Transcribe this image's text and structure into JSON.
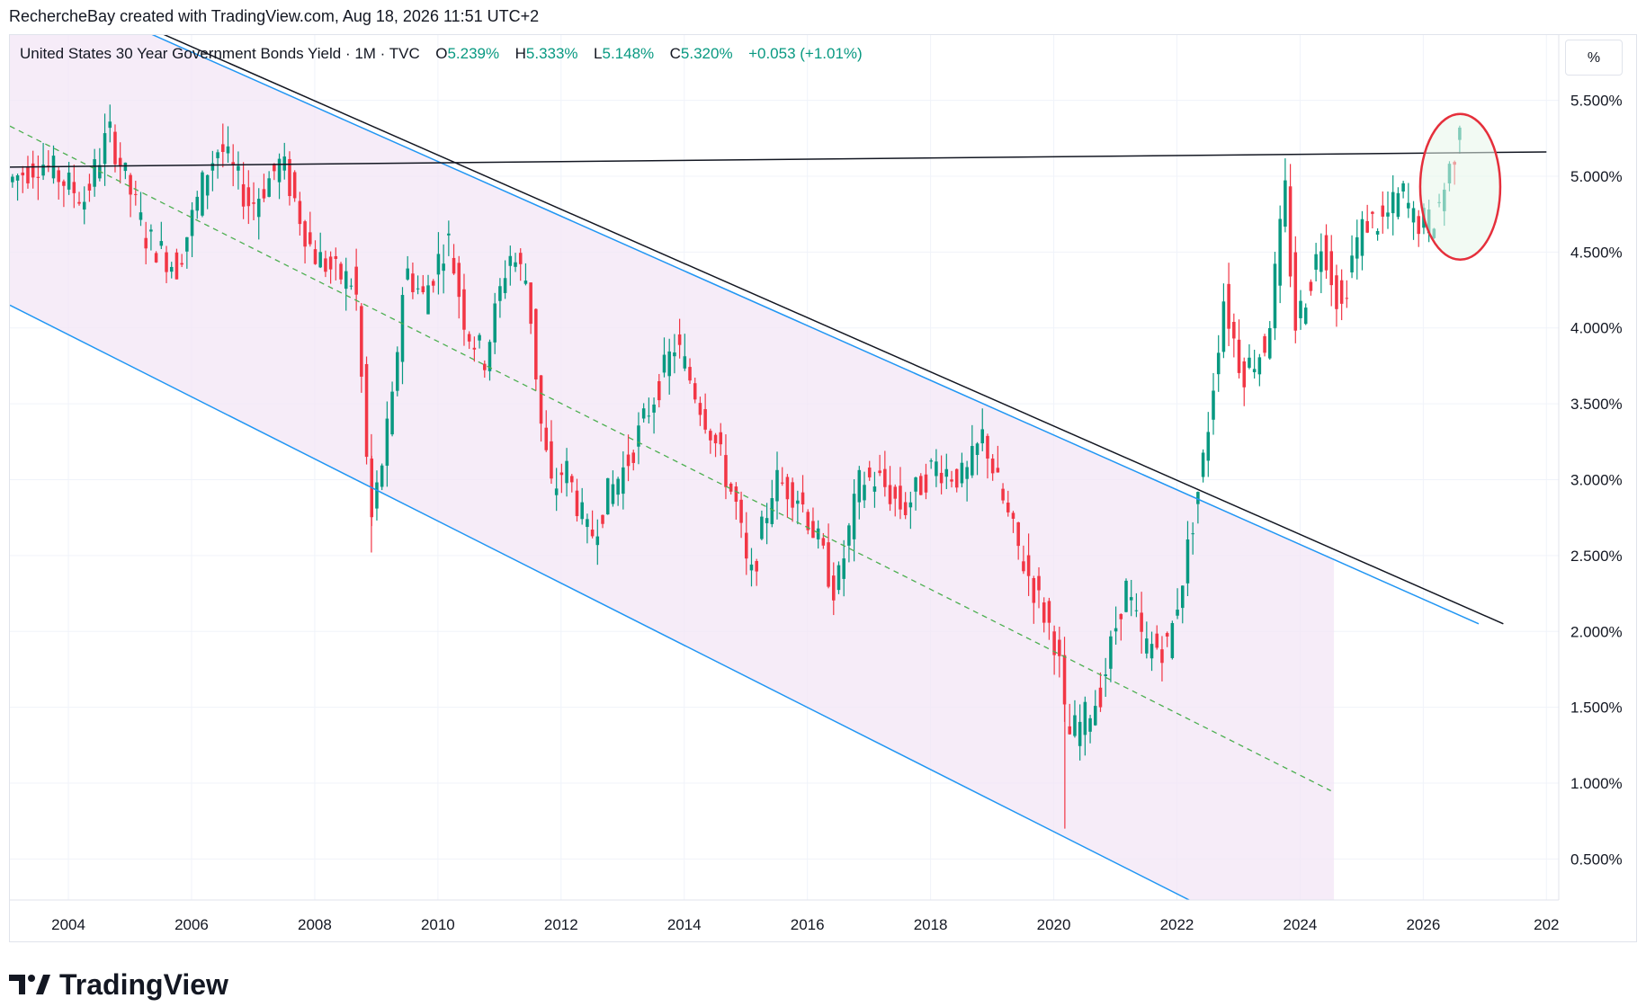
{
  "header": {
    "attribution": "RechercheBay created with TradingView.com, Aug 18, 2026 11:51 UTC+2"
  },
  "legend": {
    "symbol": "United States 30 Year Government Bonds Yield · 1M · TVC",
    "open_label": "O",
    "open_value": "5.239%",
    "high_label": "H",
    "high_value": "5.333%",
    "low_label": "L",
    "low_value": "5.148%",
    "close_label": "C",
    "close_value": "5.320%",
    "change": "+0.053 (+1.01%)"
  },
  "unit_button": {
    "label": "%"
  },
  "brand": {
    "name": "TradingView"
  },
  "colors": {
    "up": "#089981",
    "down": "#F23645",
    "channel_fill": "#F3E5F5",
    "channel_line": "#2196F3",
    "midline": "#4CAF50",
    "trend": "#131722",
    "circle_stroke": "#E52F3B",
    "circle_fill": "#E8F5E9"
  },
  "chart_data": {
    "type": "candlestick",
    "title": "United States 30 Year Government Bonds Yield · 1M · TVC",
    "x_tick_labels": [
      "2004",
      "2006",
      "2008",
      "2010",
      "2012",
      "2014",
      "2016",
      "2018",
      "2020",
      "2022",
      "2024",
      "2026",
      "202"
    ],
    "y_tick_labels": [
      "5.500%",
      "5.000%",
      "4.500%",
      "4.000%",
      "3.500%",
      "3.000%",
      "2.500%",
      "2.000%",
      "1.500%",
      "1.000%",
      "0.500%"
    ],
    "y_ticks": [
      5.5,
      5.0,
      4.5,
      4.0,
      3.5,
      3.0,
      2.5,
      2.0,
      1.5,
      1.0,
      0.5
    ],
    "x_range": [
      2003.05,
      2028.2
    ],
    "y_range": [
      0.23,
      5.93
    ],
    "last_candle": {
      "date": "2026-08",
      "open": 5.239,
      "high": 5.333,
      "low": 5.148,
      "close": 5.32
    },
    "monthly_yield_path": [
      [
        2003.0,
        4.95
      ],
      [
        2003.6,
        5.1
      ],
      [
        2004.3,
        4.85
      ],
      [
        2004.7,
        5.3
      ],
      [
        2005.0,
        4.95
      ],
      [
        2005.3,
        4.6
      ],
      [
        2005.8,
        4.4
      ],
      [
        2006.3,
        5.05
      ],
      [
        2006.5,
        5.2
      ],
      [
        2007.0,
        4.8
      ],
      [
        2007.5,
        5.1
      ],
      [
        2008.0,
        4.5
      ],
      [
        2008.4,
        4.35
      ],
      [
        2008.7,
        4.3
      ],
      [
        2008.95,
        2.7
      ],
      [
        2009.3,
        3.5
      ],
      [
        2009.5,
        4.4
      ],
      [
        2009.8,
        4.2
      ],
      [
        2010.2,
        4.6
      ],
      [
        2010.5,
        4.0
      ],
      [
        2010.8,
        3.8
      ],
      [
        2011.2,
        4.5
      ],
      [
        2011.5,
        4.3
      ],
      [
        2011.7,
        3.4
      ],
      [
        2011.9,
        2.9
      ],
      [
        2012.1,
        3.1
      ],
      [
        2012.5,
        2.6
      ],
      [
        2012.8,
        2.9
      ],
      [
        2013.1,
        3.1
      ],
      [
        2013.5,
        3.5
      ],
      [
        2013.9,
        3.9
      ],
      [
        2014.1,
        3.7
      ],
      [
        2014.5,
        3.3
      ],
      [
        2014.9,
        2.8
      ],
      [
        2015.1,
        2.3
      ],
      [
        2015.5,
        3.0
      ],
      [
        2015.9,
        2.9
      ],
      [
        2016.2,
        2.6
      ],
      [
        2016.5,
        2.25
      ],
      [
        2016.9,
        3.0
      ],
      [
        2017.2,
        3.0
      ],
      [
        2017.6,
        2.8
      ],
      [
        2018.1,
        3.1
      ],
      [
        2018.6,
        3.0
      ],
      [
        2018.9,
        3.3
      ],
      [
        2019.1,
        3.0
      ],
      [
        2019.5,
        2.5
      ],
      [
        2019.8,
        2.2
      ],
      [
        2020.1,
        1.9
      ],
      [
        2020.25,
        1.3
      ],
      [
        2020.5,
        1.4
      ],
      [
        2020.8,
        1.6
      ],
      [
        2021.2,
        2.3
      ],
      [
        2021.5,
        1.9
      ],
      [
        2021.9,
        1.9
      ],
      [
        2022.2,
        2.5
      ],
      [
        2022.5,
        3.2
      ],
      [
        2022.8,
        4.2
      ],
      [
        2023.1,
        3.7
      ],
      [
        2023.5,
        3.9
      ],
      [
        2023.8,
        4.9
      ],
      [
        2023.95,
        4.0
      ],
      [
        2024.2,
        4.3
      ],
      [
        2024.4,
        4.6
      ],
      [
        2024.7,
        4.1
      ],
      [
        2024.9,
        4.5
      ],
      [
        2025.1,
        4.7
      ],
      [
        2025.4,
        4.7
      ],
      [
        2025.7,
        4.9
      ],
      [
        2025.9,
        4.7
      ],
      [
        2026.2,
        4.7
      ],
      [
        2026.4,
        4.95
      ],
      [
        2026.6,
        5.24
      ]
    ],
    "annotations": {
      "horizontal_resistance": [
        [
          2003.05,
          5.06
        ],
        [
          2028.0,
          5.16
        ]
      ],
      "channel_upper": [
        [
          2003.05,
          6.35
        ],
        [
          2026.9,
          2.05
        ]
      ],
      "channel_mid": [
        [
          2003.05,
          5.33
        ],
        [
          2024.5,
          0.95
        ]
      ],
      "channel_lower": [
        [
          2003.05,
          4.15
        ],
        [
          2022.2,
          0.23
        ]
      ],
      "channel_fill_end_x": 2024.55,
      "trend_line": [
        [
          2003.05,
          6.38
        ],
        [
          2027.3,
          2.05
        ]
      ],
      "highlight_ellipse_center": [
        2026.6,
        4.93
      ],
      "highlight_ellipse_radii": [
        0.65,
        0.48
      ]
    }
  }
}
